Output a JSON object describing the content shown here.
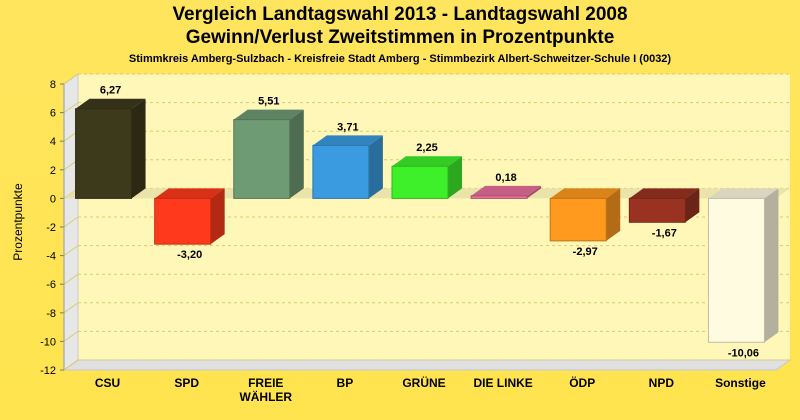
{
  "chart_data": {
    "type": "bar",
    "title": "Vergleich Landtagswahl 2013 - Landtagswahl 2008",
    "subtitle_line": "Gewinn/Verlust Zweitstimmen in Prozentpunkte",
    "subtitle": "Stimmkreis Amberg-Sulzbach - Kreisfreie Stadt Amberg - Stimmbezirk Albert-Schweitzer-Schule I (0032)",
    "ylabel": "Prozentpunkte",
    "xlabel": "",
    "ylim": [
      -12,
      8
    ],
    "yticks": [
      8,
      6,
      4,
      2,
      0,
      -2,
      -4,
      -6,
      -8,
      -10,
      -12
    ],
    "grid": true,
    "categories": [
      "CSU",
      "SPD",
      "FREIE WÄHLER",
      "BP",
      "GRÜNE",
      "DIE LINKE",
      "ÖDP",
      "NPD",
      "Sonstige"
    ],
    "category_lines": [
      [
        "CSU"
      ],
      [
        "SPD"
      ],
      [
        "FREIE",
        "WÄHLER"
      ],
      [
        "BP"
      ],
      [
        "GRÜNE"
      ],
      [
        "DIE LINKE"
      ],
      [
        "ÖDP"
      ],
      [
        "NPD"
      ],
      [
        "Sonstige"
      ]
    ],
    "values": [
      6.27,
      -3.2,
      5.51,
      3.71,
      2.25,
      0.18,
      -2.97,
      -1.67,
      -10.06
    ],
    "value_labels": [
      "6,27",
      "-3,20",
      "5,51",
      "3,71",
      "2,25",
      "0,18",
      "-2,97",
      "-1,67",
      "-10,06"
    ],
    "colors": [
      "#3d3a1c",
      "#ff3a1c",
      "#6e9a74",
      "#3a9be0",
      "#3df02a",
      "#e8709a",
      "#ff9a1e",
      "#9a3222",
      "#fffbe0"
    ]
  }
}
